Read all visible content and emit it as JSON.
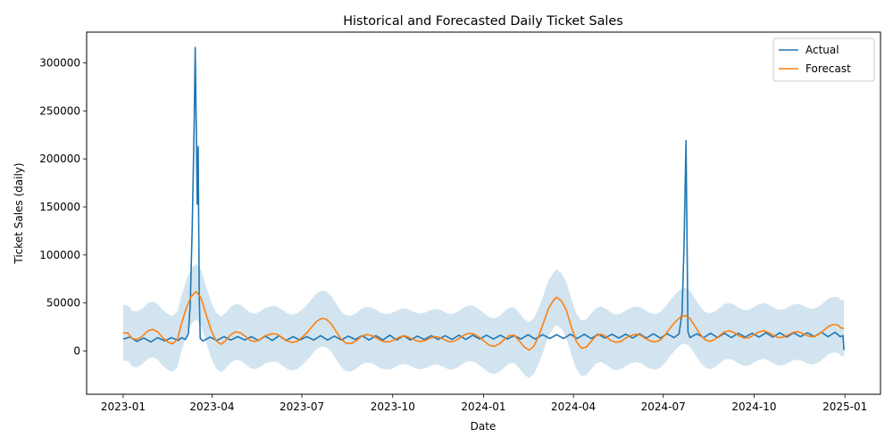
{
  "chart_data": {
    "type": "line",
    "title": "Historical and Forecasted Daily Ticket Sales",
    "xlabel": "Date",
    "ylabel": "Ticket Sales (daily)",
    "xlim": [
      "2022-11-25",
      "2025-02-06"
    ],
    "ylim": [
      -45000,
      332000
    ],
    "x_ticks": [
      "2023-01",
      "2023-04",
      "2023-07",
      "2023-10",
      "2024-01",
      "2024-04",
      "2024-07",
      "2024-10",
      "2025-01"
    ],
    "y_ticks": [
      0,
      50000,
      100000,
      150000,
      200000,
      250000,
      300000
    ],
    "y_tick_labels": [
      "0",
      "50000",
      "100000",
      "150000",
      "200000",
      "250000",
      "300000"
    ],
    "grid": false,
    "legend_position": "top-right",
    "series": [
      {
        "name": "Actual",
        "color": "#1f77b4",
        "points": [
          [
            "2023-01-01",
            12500
          ],
          [
            "2023-01-08",
            14500
          ],
          [
            "2023-01-15",
            10000
          ],
          [
            "2023-01-22",
            13500
          ],
          [
            "2023-01-29",
            9500
          ],
          [
            "2023-02-05",
            14000
          ],
          [
            "2023-02-12",
            10500
          ],
          [
            "2023-02-19",
            14000
          ],
          [
            "2023-02-26",
            11000
          ],
          [
            "2023-03-01",
            14000
          ],
          [
            "2023-03-05",
            12000
          ],
          [
            "2023-03-08",
            18000
          ],
          [
            "2023-03-10",
            50000
          ],
          [
            "2023-03-12",
            130000
          ],
          [
            "2023-03-14",
            240000
          ],
          [
            "2023-03-15",
            316000
          ],
          [
            "2023-03-16",
            240000
          ],
          [
            "2023-03-17",
            153000
          ],
          [
            "2023-03-18",
            213000
          ],
          [
            "2023-03-19",
            60000
          ],
          [
            "2023-03-20",
            13000
          ],
          [
            "2023-03-23",
            10500
          ],
          [
            "2023-03-30",
            14500
          ],
          [
            "2023-04-06",
            11000
          ],
          [
            "2023-04-13",
            15000
          ],
          [
            "2023-04-20",
            11500
          ],
          [
            "2023-04-27",
            15000
          ],
          [
            "2023-05-04",
            11500
          ],
          [
            "2023-05-11",
            15000
          ],
          [
            "2023-05-18",
            11000
          ],
          [
            "2023-05-25",
            15500
          ],
          [
            "2023-06-01",
            11000
          ],
          [
            "2023-06-08",
            16000
          ],
          [
            "2023-06-15",
            11000
          ],
          [
            "2023-06-22",
            15000
          ],
          [
            "2023-06-29",
            11500
          ],
          [
            "2023-07-06",
            15000
          ],
          [
            "2023-07-13",
            11500
          ],
          [
            "2023-07-20",
            16000
          ],
          [
            "2023-07-27",
            11500
          ],
          [
            "2023-08-03",
            15500
          ],
          [
            "2023-08-10",
            11500
          ],
          [
            "2023-08-17",
            15500
          ],
          [
            "2023-08-24",
            12000
          ],
          [
            "2023-08-31",
            16000
          ],
          [
            "2023-09-07",
            11500
          ],
          [
            "2023-09-14",
            16000
          ],
          [
            "2023-09-21",
            11500
          ],
          [
            "2023-09-28",
            16500
          ],
          [
            "2023-10-05",
            11500
          ],
          [
            "2023-10-12",
            16000
          ],
          [
            "2023-10-19",
            11500
          ],
          [
            "2023-10-26",
            15500
          ],
          [
            "2023-11-02",
            12000
          ],
          [
            "2023-11-09",
            16000
          ],
          [
            "2023-11-16",
            12000
          ],
          [
            "2023-11-23",
            16000
          ],
          [
            "2023-11-30",
            12000
          ],
          [
            "2023-12-07",
            16500
          ],
          [
            "2023-12-14",
            12000
          ],
          [
            "2023-12-21",
            16500
          ],
          [
            "2023-12-28",
            12500
          ],
          [
            "2024-01-04",
            16500
          ],
          [
            "2024-01-11",
            12500
          ],
          [
            "2024-01-18",
            16500
          ],
          [
            "2024-01-25",
            12500
          ],
          [
            "2024-02-01",
            16000
          ],
          [
            "2024-02-08",
            12500
          ],
          [
            "2024-02-15",
            17000
          ],
          [
            "2024-02-22",
            12500
          ],
          [
            "2024-03-01",
            17000
          ],
          [
            "2024-03-08",
            13000
          ],
          [
            "2024-03-15",
            17000
          ],
          [
            "2024-03-22",
            13000
          ],
          [
            "2024-03-29",
            17500
          ],
          [
            "2024-04-05",
            13000
          ],
          [
            "2024-04-12",
            17500
          ],
          [
            "2024-04-19",
            13000
          ],
          [
            "2024-04-26",
            17500
          ],
          [
            "2024-05-03",
            13500
          ],
          [
            "2024-05-10",
            17500
          ],
          [
            "2024-05-17",
            13500
          ],
          [
            "2024-05-24",
            17500
          ],
          [
            "2024-05-31",
            13500
          ],
          [
            "2024-06-07",
            18000
          ],
          [
            "2024-06-14",
            13500
          ],
          [
            "2024-06-21",
            18000
          ],
          [
            "2024-06-28",
            13500
          ],
          [
            "2024-07-05",
            18000
          ],
          [
            "2024-07-12",
            14000
          ],
          [
            "2024-07-17",
            18000
          ],
          [
            "2024-07-20",
            40000
          ],
          [
            "2024-07-22",
            110000
          ],
          [
            "2024-07-24",
            219000
          ],
          [
            "2024-07-25",
            120000
          ],
          [
            "2024-07-26",
            20000
          ],
          [
            "2024-07-28",
            14000
          ],
          [
            "2024-08-04",
            18000
          ],
          [
            "2024-08-11",
            14000
          ],
          [
            "2024-08-18",
            18500
          ],
          [
            "2024-08-25",
            14000
          ],
          [
            "2024-09-01",
            18500
          ],
          [
            "2024-09-08",
            14000
          ],
          [
            "2024-09-15",
            18500
          ],
          [
            "2024-09-22",
            14500
          ],
          [
            "2024-09-29",
            18500
          ],
          [
            "2024-10-06",
            14500
          ],
          [
            "2024-10-13",
            19000
          ],
          [
            "2024-10-20",
            14500
          ],
          [
            "2024-10-27",
            19000
          ],
          [
            "2024-11-03",
            14500
          ],
          [
            "2024-11-10",
            19000
          ],
          [
            "2024-11-17",
            15000
          ],
          [
            "2024-11-24",
            19000
          ],
          [
            "2024-12-01",
            15000
          ],
          [
            "2024-12-08",
            19500
          ],
          [
            "2024-12-15",
            15000
          ],
          [
            "2024-12-22",
            19500
          ],
          [
            "2024-12-27",
            15000
          ],
          [
            "2024-12-30",
            16000
          ],
          [
            "2024-12-31",
            1000
          ]
        ]
      },
      {
        "name": "Forecast",
        "color": "#ff7f0e",
        "band_color": "#1f77b4",
        "band_halfwidth": 29000,
        "points": [
          [
            "2023-01-01",
            19000
          ],
          [
            "2023-01-06",
            18500
          ],
          [
            "2023-01-10",
            13000
          ],
          [
            "2023-01-15",
            12000
          ],
          [
            "2023-01-20",
            15000
          ],
          [
            "2023-01-26",
            21000
          ],
          [
            "2023-01-31",
            22500
          ],
          [
            "2023-02-05",
            20000
          ],
          [
            "2023-02-10",
            14000
          ],
          [
            "2023-02-16",
            9000
          ],
          [
            "2023-02-20",
            7500
          ],
          [
            "2023-02-25",
            12000
          ],
          [
            "2023-03-01",
            28000
          ],
          [
            "2023-03-06",
            45000
          ],
          [
            "2023-03-11",
            57000
          ],
          [
            "2023-03-16",
            62000
          ],
          [
            "2023-03-21",
            55000
          ],
          [
            "2023-03-26",
            38000
          ],
          [
            "2023-03-31",
            22000
          ],
          [
            "2023-04-05",
            11000
          ],
          [
            "2023-04-10",
            7000
          ],
          [
            "2023-04-15",
            11000
          ],
          [
            "2023-04-20",
            17000
          ],
          [
            "2023-04-25",
            20000
          ],
          [
            "2023-04-30",
            19000
          ],
          [
            "2023-05-05",
            15000
          ],
          [
            "2023-05-10",
            11000
          ],
          [
            "2023-05-15",
            10000
          ],
          [
            "2023-05-20",
            12500
          ],
          [
            "2023-05-25",
            16000
          ],
          [
            "2023-06-01",
            18000
          ],
          [
            "2023-06-06",
            17500
          ],
          [
            "2023-06-11",
            14000
          ],
          [
            "2023-06-16",
            10500
          ],
          [
            "2023-06-21",
            9000
          ],
          [
            "2023-06-26",
            10000
          ],
          [
            "2023-07-01",
            14000
          ],
          [
            "2023-07-06",
            19000
          ],
          [
            "2023-07-11",
            25000
          ],
          [
            "2023-07-16",
            31000
          ],
          [
            "2023-07-21",
            34000
          ],
          [
            "2023-07-26",
            33000
          ],
          [
            "2023-07-31",
            28000
          ],
          [
            "2023-08-05",
            20000
          ],
          [
            "2023-08-10",
            12000
          ],
          [
            "2023-08-15",
            8000
          ],
          [
            "2023-08-20",
            8000
          ],
          [
            "2023-08-25",
            10500
          ],
          [
            "2023-08-30",
            15000
          ],
          [
            "2023-09-04",
            17000
          ],
          [
            "2023-09-09",
            16500
          ],
          [
            "2023-09-14",
            14000
          ],
          [
            "2023-09-19",
            11000
          ],
          [
            "2023-09-24",
            9500
          ],
          [
            "2023-09-29",
            10000
          ],
          [
            "2023-10-04",
            12500
          ],
          [
            "2023-10-09",
            15000
          ],
          [
            "2023-10-14",
            15500
          ],
          [
            "2023-10-19",
            13500
          ],
          [
            "2023-10-24",
            11000
          ],
          [
            "2023-10-29",
            10000
          ],
          [
            "2023-11-03",
            11000
          ],
          [
            "2023-11-08",
            13500
          ],
          [
            "2023-11-13",
            15000
          ],
          [
            "2023-11-18",
            14000
          ],
          [
            "2023-11-23",
            11500
          ],
          [
            "2023-11-28",
            9500
          ],
          [
            "2023-12-03",
            10500
          ],
          [
            "2023-12-08",
            13500
          ],
          [
            "2023-12-13",
            17000
          ],
          [
            "2023-12-18",
            18500
          ],
          [
            "2023-12-23",
            17500
          ],
          [
            "2023-12-28",
            14000
          ],
          [
            "2024-01-02",
            10000
          ],
          [
            "2024-01-07",
            6000
          ],
          [
            "2024-01-12",
            5000
          ],
          [
            "2024-01-17",
            7500
          ],
          [
            "2024-01-22",
            12000
          ],
          [
            "2024-01-27",
            16000
          ],
          [
            "2024-02-01",
            16500
          ],
          [
            "2024-02-06",
            11000
          ],
          [
            "2024-02-11",
            4500
          ],
          [
            "2024-02-16",
            1000
          ],
          [
            "2024-02-21",
            5000
          ],
          [
            "2024-02-26",
            16000
          ],
          [
            "2024-03-02",
            30000
          ],
          [
            "2024-03-07",
            45000
          ],
          [
            "2024-03-12",
            53000
          ],
          [
            "2024-03-15",
            56000
          ],
          [
            "2024-03-20",
            52000
          ],
          [
            "2024-03-25",
            42000
          ],
          [
            "2024-03-30",
            25000
          ],
          [
            "2024-04-04",
            10000
          ],
          [
            "2024-04-09",
            3000
          ],
          [
            "2024-04-14",
            4000
          ],
          [
            "2024-04-19",
            10000
          ],
          [
            "2024-04-24",
            16000
          ],
          [
            "2024-04-29",
            17500
          ],
          [
            "2024-05-04",
            15000
          ],
          [
            "2024-05-09",
            11000
          ],
          [
            "2024-05-14",
            9000
          ],
          [
            "2024-05-19",
            10000
          ],
          [
            "2024-05-24",
            13500
          ],
          [
            "2024-05-29",
            16000
          ],
          [
            "2024-06-03",
            17500
          ],
          [
            "2024-06-08",
            16500
          ],
          [
            "2024-06-13",
            13000
          ],
          [
            "2024-06-18",
            10500
          ],
          [
            "2024-06-23",
            9500
          ],
          [
            "2024-06-28",
            11500
          ],
          [
            "2024-07-03",
            17000
          ],
          [
            "2024-07-08",
            24000
          ],
          [
            "2024-07-13",
            30000
          ],
          [
            "2024-07-18",
            35000
          ],
          [
            "2024-07-23",
            37000
          ],
          [
            "2024-07-28",
            34000
          ],
          [
            "2024-08-02",
            26000
          ],
          [
            "2024-08-07",
            18000
          ],
          [
            "2024-08-12",
            12000
          ],
          [
            "2024-08-17",
            10000
          ],
          [
            "2024-08-22",
            12000
          ],
          [
            "2024-08-27",
            16000
          ],
          [
            "2024-09-01",
            20000
          ],
          [
            "2024-09-06",
            21000
          ],
          [
            "2024-09-11",
            19000
          ],
          [
            "2024-09-16",
            15500
          ],
          [
            "2024-09-21",
            13500
          ],
          [
            "2024-09-26",
            14000
          ],
          [
            "2024-10-01",
            17000
          ],
          [
            "2024-10-06",
            20000
          ],
          [
            "2024-10-11",
            21000
          ],
          [
            "2024-10-16",
            19000
          ],
          [
            "2024-10-21",
            16000
          ],
          [
            "2024-10-26",
            14000
          ],
          [
            "2024-10-31",
            14500
          ],
          [
            "2024-11-05",
            17000
          ],
          [
            "2024-11-10",
            19500
          ],
          [
            "2024-11-15",
            20000
          ],
          [
            "2024-11-20",
            18000
          ],
          [
            "2024-11-25",
            15500
          ],
          [
            "2024-11-30",
            15000
          ],
          [
            "2024-12-05",
            17000
          ],
          [
            "2024-12-10",
            21000
          ],
          [
            "2024-12-15",
            25500
          ],
          [
            "2024-12-20",
            27500
          ],
          [
            "2024-12-25",
            27000
          ],
          [
            "2024-12-28",
            24000
          ],
          [
            "2024-12-31",
            23500
          ]
        ]
      }
    ]
  }
}
